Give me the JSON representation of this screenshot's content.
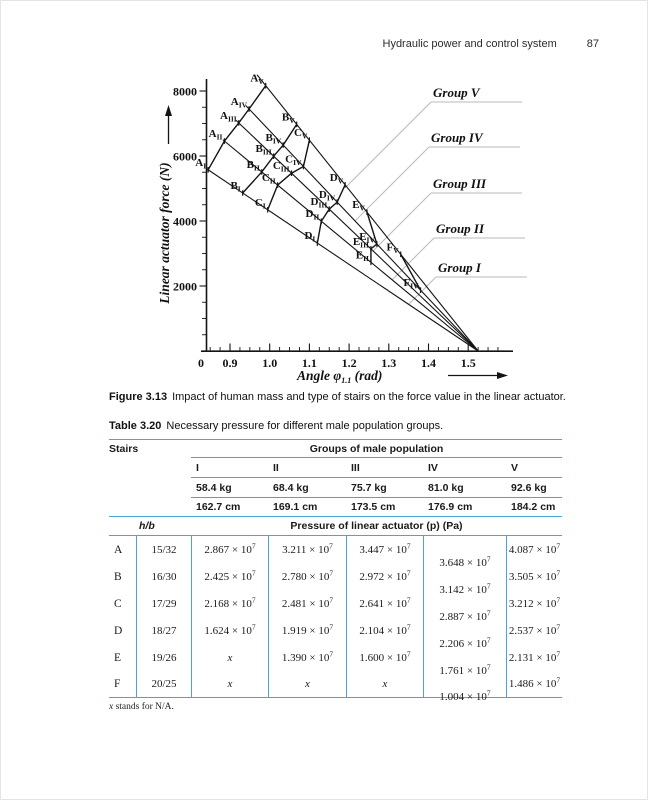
{
  "header": {
    "running_title": "Hydraulic power and control system",
    "page_number": "87"
  },
  "figure": {
    "caption_label": "Figure 3.13",
    "caption_text": "Impact of human mass and type of stairs on the force value in the linear actuator."
  },
  "chart_data": {
    "type": "line",
    "title": "",
    "xlabel": "Angle φ1.1 (rad)",
    "xlabel_parts": {
      "word": "Angle",
      "symbol": "φ",
      "subscript": "1.1",
      "unit": "(rad)"
    },
    "ylabel": "Linear actuator force  (N)",
    "x_origin_label": "0",
    "x_ticks": [
      0.9,
      1.0,
      1.1,
      1.2,
      1.3,
      1.4,
      1.5
    ],
    "y_ticks": [
      2000,
      4000,
      6000,
      8000
    ],
    "xlim": [
      0.84,
      1.62
    ],
    "ylim": [
      0,
      8500
    ],
    "grid": false,
    "axis_break": "x-axis broken between 0 and 0.9",
    "legend_position": "right-side callout labels with leader lines",
    "convergence_point": {
      "phi": 1.525,
      "force": 0
    },
    "group_lines": [
      {
        "id": "I",
        "label": "Group I",
        "line_top": {
          "phi": 0.842,
          "force": 5600
        }
      },
      {
        "id": "II",
        "label": "Group II",
        "line_top": {
          "phi": 0.882,
          "force": 6500
        }
      },
      {
        "id": "III",
        "label": "Group III",
        "line_top": {
          "phi": 0.915,
          "force": 7100
        }
      },
      {
        "id": "IV",
        "label": "Group IV",
        "line_top": {
          "phi": 0.94,
          "force": 7550
        }
      },
      {
        "id": "V",
        "label": "Group V",
        "line_top": {
          "phi": 0.968,
          "force": 8500
        }
      }
    ],
    "stair_curves": [
      {
        "stair": "A",
        "points": [
          {
            "group": "I",
            "phi": 0.845,
            "force": 5580
          },
          {
            "group": "II",
            "phi": 0.886,
            "force": 6460
          },
          {
            "group": "III",
            "phi": 0.922,
            "force": 7020
          },
          {
            "group": "IV",
            "phi": 0.948,
            "force": 7450
          },
          {
            "group": "V",
            "phi": 0.99,
            "force": 8160
          }
        ]
      },
      {
        "stair": "B",
        "points": [
          {
            "group": "I",
            "phi": 0.932,
            "force": 4860
          },
          {
            "group": "II",
            "phi": 0.98,
            "force": 5510
          },
          {
            "group": "III",
            "phi": 1.01,
            "force": 5990
          },
          {
            "group": "IV",
            "phi": 1.034,
            "force": 6340
          },
          {
            "group": "V",
            "phi": 1.068,
            "force": 6970
          }
        ]
      },
      {
        "stair": "C",
        "points": [
          {
            "group": "I",
            "phi": 0.995,
            "force": 4350
          },
          {
            "group": "II",
            "phi": 1.02,
            "force": 5110
          },
          {
            "group": "III",
            "phi": 1.055,
            "force": 5470
          },
          {
            "group": "IV",
            "phi": 1.085,
            "force": 5680
          },
          {
            "group": "V",
            "phi": 1.1,
            "force": 6490
          }
        ]
      },
      {
        "stair": "D",
        "points": [
          {
            "group": "I",
            "phi": 1.12,
            "force": 3320
          },
          {
            "group": "II",
            "phi": 1.13,
            "force": 3990
          },
          {
            "group": "III",
            "phi": 1.15,
            "force": 4370
          },
          {
            "group": "IV",
            "phi": 1.17,
            "force": 4580
          },
          {
            "group": "V",
            "phi": 1.19,
            "force": 5110
          }
        ]
      },
      {
        "stair": "E",
        "points": [
          {
            "group": "II",
            "phi": 1.255,
            "force": 2730
          },
          {
            "group": "III",
            "phi": 1.255,
            "force": 3140
          },
          {
            "group": "IV",
            "phi": 1.27,
            "force": 3290
          },
          {
            "group": "V",
            "phi": 1.245,
            "force": 4270
          }
        ]
      },
      {
        "stair": "F",
        "points": [
          {
            "group": "IV",
            "phi": 1.38,
            "force": 1870
          },
          {
            "group": "V",
            "phi": 1.33,
            "force": 2980
          }
        ]
      }
    ]
  },
  "table": {
    "caption_label": "Table 3.20",
    "caption_text": "Necessary pressure for different male population groups.",
    "stairs_header": "Stairs",
    "groups_header": "Groups of male population",
    "group_ids": [
      "I",
      "II",
      "III",
      "IV",
      "V"
    ],
    "weights": [
      "58.4 kg",
      "68.4 kg",
      "75.7 kg",
      "81.0 kg",
      "92.6 kg"
    ],
    "heights": [
      "162.7 cm",
      "169.1 cm",
      "173.5 cm",
      "176.9 cm",
      "184.2 cm"
    ],
    "hb_header": "h/b",
    "pressure_header": "Pressure of linear actuator (p) (Pa)",
    "multiplier": "× 10",
    "exponent": "7",
    "na_symbol": "x",
    "rows": [
      {
        "stair": "A",
        "hb": "15/32",
        "pressures": [
          "2.867",
          "3.211",
          "3.447",
          "3.648",
          "4.087"
        ]
      },
      {
        "stair": "B",
        "hb": "16/30",
        "pressures": [
          "2.425",
          "2.780",
          "2.972",
          "3.142",
          "3.505"
        ]
      },
      {
        "stair": "C",
        "hb": "17/29",
        "pressures": [
          "2.168",
          "2.481",
          "2.641",
          "2.887",
          "3.212"
        ]
      },
      {
        "stair": "D",
        "hb": "18/27",
        "pressures": [
          "1.624",
          "1.919",
          "2.104",
          "2.206",
          "2.537"
        ]
      },
      {
        "stair": "E",
        "hb": "19/26",
        "pressures": [
          "x",
          "1.390",
          "1.600",
          "1.761",
          "2.131"
        ]
      },
      {
        "stair": "F",
        "hb": "20/25",
        "pressures": [
          "x",
          "x",
          "x",
          "1.004",
          "1.486"
        ]
      }
    ],
    "footnote": {
      "symbol": "x",
      "text": " stands for N/A."
    }
  }
}
